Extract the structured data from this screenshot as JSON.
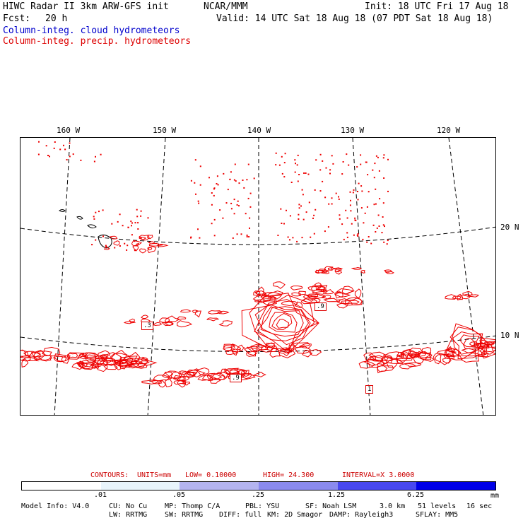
{
  "header": {
    "title": "HIWC Radar II 3km ARW-GFS init",
    "org": "NCAR/MMM",
    "init": "Init: 18 UTC Fri 17 Aug 18",
    "fcst_label": "Fcst:",
    "fcst_value": "20 h",
    "valid": "Valid: 14 UTC Sat 18 Aug 18 (07 PDT Sat 18 Aug 18)",
    "field_cloud": "Column-integ. cloud hydrometeors",
    "field_precip": "Column-integ. precip. hydrometeors"
  },
  "map": {
    "longitude_labels": [
      "160 W",
      "150 W",
      "140 W",
      "130 W",
      "120 W"
    ],
    "latitude_labels": [
      "20 N",
      "10 N"
    ],
    "feature_labels": [
      ".3",
      ".9",
      ".9",
      "1"
    ]
  },
  "contours": {
    "label": "CONTOURS:",
    "units": "UNITS=mm",
    "low": "LOW= 0.10000",
    "high": "HIGH= 24.300",
    "interval": "INTERVAL=X 3.0000"
  },
  "colorbar": {
    "ticks": [
      ".01",
      ".05",
      ".25",
      "1.25",
      "6.25",
      "mm"
    ],
    "colors": [
      "#ffffff",
      "#e8f4fb",
      "#b4b4f0",
      "#8a8aee",
      "#4848f0",
      "#0000e8"
    ]
  },
  "model_info": {
    "line1": [
      "Model Info: V4.0",
      "CU: No Cu",
      "MP: Thomp C/A",
      "PBL: YSU",
      "SF: Noah LSM",
      "3.0 km",
      "51 levels",
      "16 sec"
    ],
    "line2": [
      "LW: RRTMG",
      "SW: RRTMG",
      "DIFF: full",
      "KM: 2D Smagor",
      "DAMP: Rayleigh3",
      "SFLAY: MM5"
    ]
  },
  "colors": {
    "precip": "#ee0000",
    "cloud": "#0000cc",
    "grid": "#000000"
  }
}
